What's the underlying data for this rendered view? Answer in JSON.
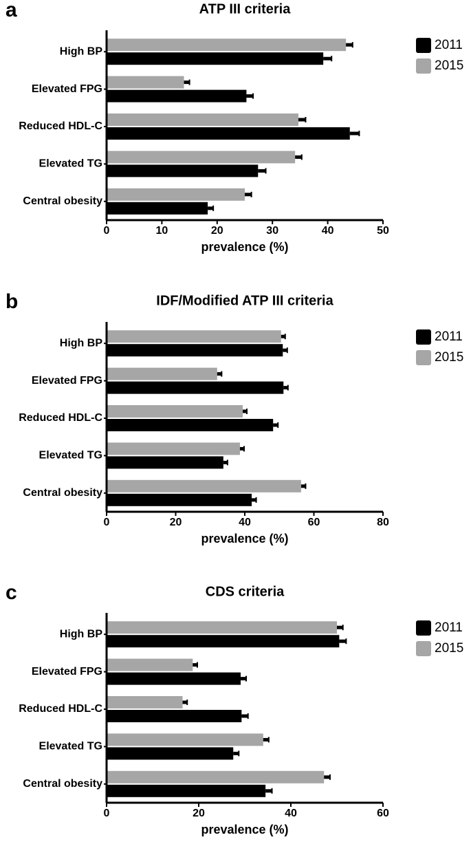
{
  "chart_data": [
    {
      "type": "bar",
      "panel": "a",
      "title": "ATP III criteria",
      "xlabel": "prevalence (%)",
      "categories": [
        "High BP",
        "Elevated FPG",
        "Reduced HDL-C",
        "Elevated TG",
        "Central obesity"
      ],
      "series": [
        {
          "name": "2011",
          "color": "#000000",
          "values": [
            39.2,
            25.3,
            44.0,
            27.4,
            18.3
          ],
          "errors": [
            1.5,
            1.2,
            1.7,
            1.4,
            1.0
          ]
        },
        {
          "name": "2015",
          "color": "#a6a6a6",
          "values": [
            43.3,
            14.0,
            34.7,
            34.1,
            25.0
          ],
          "errors": [
            1.2,
            1.0,
            1.3,
            1.2,
            1.2
          ]
        }
      ],
      "xlim": [
        0,
        50
      ],
      "xticks": [
        0,
        10,
        20,
        30,
        40,
        50
      ]
    },
    {
      "type": "bar",
      "panel": "b",
      "title": "IDF/Modified ATP III criteria",
      "xlabel": "prevalence (%)",
      "categories": [
        "High BP",
        "Elevated FPG",
        "Reduced HDL-C",
        "Elevated TG",
        "Central obesity"
      ],
      "series": [
        {
          "name": "2011",
          "color": "#000000",
          "values": [
            51.0,
            51.2,
            48.2,
            33.8,
            42.0
          ],
          "errors": [
            1.3,
            1.3,
            1.4,
            1.2,
            1.3
          ]
        },
        {
          "name": "2015",
          "color": "#a6a6a6",
          "values": [
            50.5,
            32.0,
            39.4,
            38.6,
            56.3
          ],
          "errors": [
            1.2,
            1.3,
            1.2,
            1.2,
            1.3
          ]
        }
      ],
      "xlim": [
        0,
        80
      ],
      "xticks": [
        0,
        20,
        40,
        60,
        80
      ]
    },
    {
      "type": "bar",
      "panel": "c",
      "title": "CDS criteria",
      "xlabel": "prevalence (%)",
      "categories": [
        "High BP",
        "Elevated FPG",
        "Reduced HDL-C",
        "Elevated TG",
        "Central obesity"
      ],
      "series": [
        {
          "name": "2011",
          "color": "#000000",
          "values": [
            50.5,
            29.1,
            29.3,
            27.5,
            34.5
          ],
          "errors": [
            1.5,
            1.2,
            1.4,
            1.2,
            1.4
          ]
        },
        {
          "name": "2015",
          "color": "#a6a6a6",
          "values": [
            50.0,
            18.7,
            16.5,
            34.0,
            47.2
          ],
          "errors": [
            1.3,
            1.0,
            1.0,
            1.2,
            1.3
          ]
        }
      ],
      "xlim": [
        0,
        60
      ],
      "xticks": [
        0,
        20,
        40,
        60
      ]
    }
  ]
}
